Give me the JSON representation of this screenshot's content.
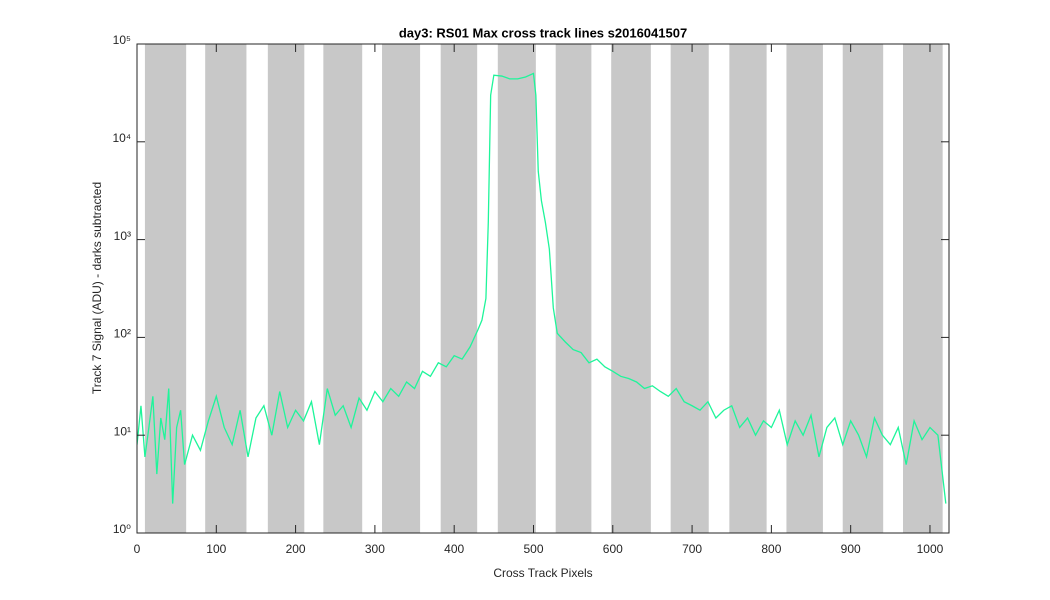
{
  "chart_data": {
    "type": "line",
    "title": "day3: RS01  Max cross track lines  s2016041507",
    "xlabel": "Cross Track Pixels",
    "ylabel": "Track 7 Signal (ADU) - darks subtracted",
    "log_y": true,
    "xlim": [
      0,
      1024
    ],
    "ylim": [
      1,
      100000
    ],
    "xticks": [
      0,
      100,
      200,
      300,
      400,
      500,
      600,
      700,
      800,
      900,
      1000
    ],
    "yticks": [
      {
        "value": 1,
        "label": "10⁰"
      },
      {
        "value": 10,
        "label": "10¹"
      },
      {
        "value": 100,
        "label": "10²"
      },
      {
        "value": 1000,
        "label": "10³"
      },
      {
        "value": 10000,
        "label": "10⁴"
      },
      {
        "value": 100000,
        "label": "10⁵"
      }
    ],
    "bands": [
      [
        10,
        62
      ],
      [
        86,
        138
      ],
      [
        165,
        211
      ],
      [
        235,
        284
      ],
      [
        309,
        357
      ],
      [
        383,
        429
      ],
      [
        455,
        503
      ],
      [
        528,
        573
      ],
      [
        598,
        648
      ],
      [
        673,
        721
      ],
      [
        747,
        794
      ],
      [
        819,
        865
      ],
      [
        890,
        941
      ],
      [
        966,
        1016
      ]
    ],
    "band_color": "#c8c8c8",
    "x": [
      0,
      5,
      10,
      15,
      20,
      25,
      30,
      35,
      40,
      45,
      50,
      55,
      60,
      70,
      80,
      90,
      100,
      110,
      120,
      130,
      140,
      150,
      160,
      170,
      180,
      190,
      200,
      210,
      220,
      230,
      240,
      250,
      260,
      270,
      280,
      290,
      300,
      310,
      320,
      330,
      340,
      350,
      360,
      370,
      380,
      390,
      400,
      410,
      420,
      430,
      435,
      440,
      443,
      446,
      450,
      460,
      470,
      480,
      490,
      500,
      503,
      506,
      510,
      515,
      520,
      525,
      530,
      540,
      550,
      560,
      570,
      580,
      590,
      600,
      610,
      620,
      630,
      640,
      650,
      660,
      670,
      680,
      690,
      700,
      710,
      720,
      730,
      740,
      750,
      760,
      770,
      780,
      790,
      800,
      810,
      820,
      830,
      840,
      850,
      860,
      870,
      880,
      890,
      900,
      910,
      920,
      930,
      940,
      950,
      960,
      970,
      980,
      990,
      1000,
      1010,
      1020
    ],
    "series": [
      {
        "name": "Track 7",
        "color": "#1ef59a",
        "values": [
          8,
          20,
          6,
          12,
          25,
          4,
          15,
          9,
          30,
          2,
          12,
          18,
          5,
          10,
          7,
          14,
          25,
          12,
          8,
          18,
          6,
          15,
          20,
          10,
          28,
          12,
          18,
          14,
          22,
          8,
          30,
          16,
          20,
          12,
          24,
          18,
          28,
          22,
          30,
          25,
          35,
          30,
          45,
          40,
          55,
          50,
          65,
          60,
          80,
          120,
          150,
          250,
          1500,
          30000,
          48000,
          47000,
          44000,
          44000,
          46000,
          50000,
          30000,
          5000,
          2500,
          1500,
          800,
          200,
          110,
          90,
          75,
          70,
          55,
          60,
          50,
          45,
          40,
          38,
          35,
          30,
          32,
          28,
          25,
          30,
          22,
          20,
          18,
          22,
          15,
          18,
          20,
          12,
          15,
          10,
          14,
          12,
          18,
          8,
          14,
          10,
          16,
          6,
          12,
          15,
          8,
          14,
          10,
          6,
          15,
          10,
          8,
          12,
          5,
          14,
          9,
          12,
          10,
          2
        ]
      }
    ]
  }
}
